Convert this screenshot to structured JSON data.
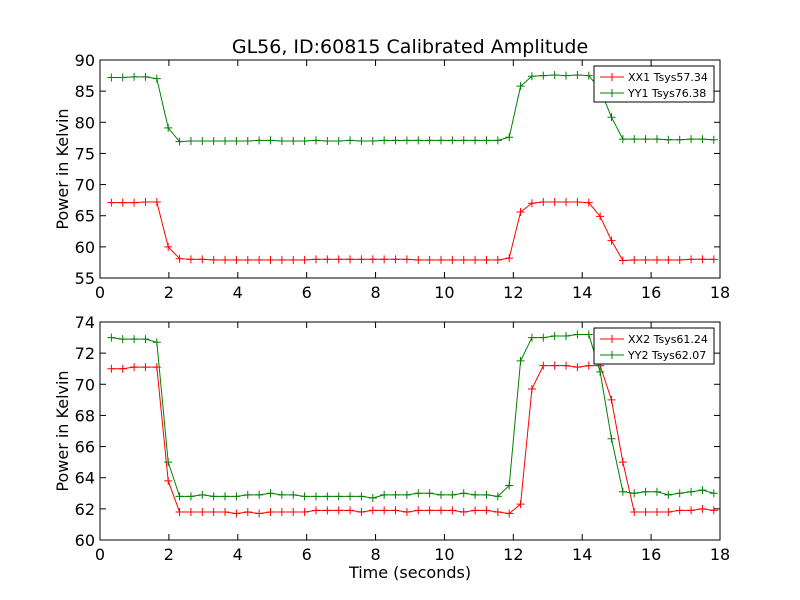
{
  "chart_data": [
    {
      "type": "line",
      "title": "GL56, ID:60815 Calibrated Amplitude",
      "xlabel": "",
      "ylabel": "Power in Kelvin",
      "xlim": [
        0,
        18
      ],
      "ylim": [
        55,
        90
      ],
      "xticks": [
        0,
        2,
        4,
        6,
        8,
        10,
        12,
        14,
        16,
        18
      ],
      "yticks": [
        55,
        60,
        65,
        70,
        75,
        80,
        85,
        90
      ],
      "grid": false,
      "legend": "top-right",
      "x": [
        0.33,
        0.66,
        0.99,
        1.32,
        1.65,
        1.98,
        2.31,
        2.64,
        2.97,
        3.3,
        3.63,
        3.96,
        4.29,
        4.62,
        4.95,
        5.28,
        5.61,
        5.94,
        6.27,
        6.6,
        6.93,
        7.26,
        7.59,
        7.92,
        8.25,
        8.58,
        8.91,
        9.24,
        9.57,
        9.9,
        10.23,
        10.56,
        10.89,
        11.22,
        11.55,
        11.88,
        12.21,
        12.54,
        12.87,
        13.2,
        13.53,
        13.86,
        14.19,
        14.52,
        14.85,
        15.18,
        15.51,
        15.84,
        16.17,
        16.5,
        16.83,
        17.16,
        17.49,
        17.82
      ],
      "series": [
        {
          "name": "XX1 Tsys57.34",
          "color": "#ff0000",
          "values": [
            67.1,
            67.1,
            67.1,
            67.2,
            67.2,
            60.0,
            58.1,
            58.0,
            58.0,
            57.9,
            57.9,
            57.9,
            57.9,
            57.9,
            57.9,
            57.9,
            57.9,
            57.9,
            58.0,
            58.0,
            58.0,
            58.0,
            58.0,
            58.0,
            58.0,
            58.0,
            58.0,
            57.9,
            57.9,
            57.9,
            57.9,
            57.9,
            57.9,
            57.9,
            57.9,
            58.2,
            65.6,
            67.0,
            67.2,
            67.2,
            67.2,
            67.2,
            67.1,
            64.9,
            61.0,
            57.8,
            57.9,
            57.9,
            57.9,
            57.9,
            57.9,
            58.0,
            58.0,
            58.0
          ]
        },
        {
          "name": "YY1 Tsys76.38",
          "color": "#008000",
          "values": [
            87.2,
            87.2,
            87.3,
            87.3,
            87.0,
            79.1,
            76.9,
            77.0,
            77.0,
            77.0,
            77.0,
            77.0,
            77.0,
            77.1,
            77.1,
            77.0,
            77.0,
            77.0,
            77.1,
            77.0,
            77.0,
            77.1,
            77.0,
            77.0,
            77.1,
            77.1,
            77.1,
            77.1,
            77.1,
            77.1,
            77.1,
            77.1,
            77.1,
            77.1,
            77.1,
            77.6,
            85.8,
            87.4,
            87.5,
            87.6,
            87.5,
            87.6,
            87.5,
            85.3,
            80.8,
            77.3,
            77.3,
            77.3,
            77.3,
            77.2,
            77.2,
            77.3,
            77.3,
            77.2
          ]
        }
      ]
    },
    {
      "type": "line",
      "title": "",
      "xlabel": "Time (seconds)",
      "ylabel": "Power in Kelvin",
      "xlim": [
        0,
        18
      ],
      "ylim": [
        60,
        74
      ],
      "xticks": [
        0,
        2,
        4,
        6,
        8,
        10,
        12,
        14,
        16,
        18
      ],
      "yticks": [
        60,
        62,
        64,
        66,
        68,
        70,
        72,
        74
      ],
      "grid": false,
      "legend": "top-right",
      "x": [
        0.33,
        0.66,
        0.99,
        1.32,
        1.65,
        1.98,
        2.31,
        2.64,
        2.97,
        3.3,
        3.63,
        3.96,
        4.29,
        4.62,
        4.95,
        5.28,
        5.61,
        5.94,
        6.27,
        6.6,
        6.93,
        7.26,
        7.59,
        7.92,
        8.25,
        8.58,
        8.91,
        9.24,
        9.57,
        9.9,
        10.23,
        10.56,
        10.89,
        11.22,
        11.55,
        11.88,
        12.21,
        12.54,
        12.87,
        13.2,
        13.53,
        13.86,
        14.19,
        14.52,
        14.85,
        15.18,
        15.51,
        15.84,
        16.17,
        16.5,
        16.83,
        17.16,
        17.49,
        17.82
      ],
      "series": [
        {
          "name": "XX2 Tsys61.24",
          "color": "#ff0000",
          "values": [
            71.0,
            71.0,
            71.1,
            71.1,
            71.1,
            63.8,
            61.8,
            61.8,
            61.8,
            61.8,
            61.8,
            61.7,
            61.8,
            61.7,
            61.8,
            61.8,
            61.8,
            61.8,
            61.9,
            61.9,
            61.9,
            61.9,
            61.8,
            61.9,
            61.9,
            61.9,
            61.8,
            61.9,
            61.9,
            61.9,
            61.9,
            61.8,
            61.9,
            61.9,
            61.8,
            61.7,
            62.3,
            69.7,
            71.2,
            71.2,
            71.2,
            71.1,
            71.2,
            71.2,
            69.0,
            65.0,
            61.8,
            61.8,
            61.8,
            61.8,
            61.9,
            61.9,
            62.0,
            61.9
          ]
        },
        {
          "name": "YY2 Tsys62.07",
          "color": "#008000",
          "values": [
            73.0,
            72.9,
            72.9,
            72.9,
            72.7,
            65.0,
            62.8,
            62.8,
            62.9,
            62.8,
            62.8,
            62.8,
            62.9,
            62.9,
            63.0,
            62.9,
            62.9,
            62.8,
            62.8,
            62.8,
            62.8,
            62.8,
            62.8,
            62.7,
            62.9,
            62.9,
            62.9,
            63.0,
            63.0,
            62.9,
            62.9,
            63.0,
            62.9,
            62.9,
            62.8,
            63.5,
            71.5,
            73.0,
            73.0,
            73.1,
            73.1,
            73.2,
            73.2,
            70.8,
            66.5,
            63.1,
            63.0,
            63.1,
            63.1,
            62.9,
            63.0,
            63.1,
            63.2,
            63.0
          ]
        }
      ]
    }
  ]
}
